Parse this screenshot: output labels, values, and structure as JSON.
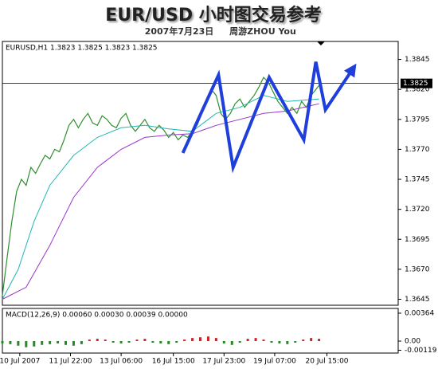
{
  "title": "EUR/USD 小时图交易参考",
  "subtitle": "2007年7月23日",
  "author": "周游ZHOU You",
  "chart_data": [
    {
      "type": "line",
      "header": "EURUSD,H1  1.3823 1.3825 1.3823 1.3825",
      "xlim": [
        0,
        250
      ],
      "xticks": [
        {
          "value": 11,
          "label": "10 Jul 2007"
        },
        {
          "value": 43,
          "label": "11 Jul 22:00"
        },
        {
          "value": 75,
          "label": "13 Jul 06:00"
        },
        {
          "value": 108,
          "label": "16 Jul 15:00"
        },
        {
          "value": 140,
          "label": "17 Jul 23:00"
        },
        {
          "value": 172,
          "label": "19 Jul 07:00"
        },
        {
          "value": 205,
          "label": "20 Jul 15:00"
        }
      ],
      "ylim": [
        1.364,
        1.386
      ],
      "yticks": [
        1.3645,
        {
          "value": 1.367,
          "label": "1.3670"
        },
        1.3695,
        {
          "value": 1.372,
          "label": "1.3720"
        },
        1.3745,
        {
          "value": 1.377,
          "label": "1.3770"
        },
        1.3795,
        {
          "value": 1.382,
          "label": "1.3820"
        },
        1.3845
      ],
      "current_price": 1.3825,
      "series": [
        {
          "color": "#2f8f2f",
          "x": [
            0,
            3,
            6,
            9,
            12,
            15,
            18,
            21,
            24,
            27,
            30,
            33,
            36,
            39,
            42,
            45,
            48,
            51,
            54,
            57,
            60,
            63,
            66,
            69,
            72,
            75,
            78,
            81,
            84,
            87,
            90,
            93,
            96,
            99,
            102,
            105,
            108,
            111,
            114,
            117,
            120,
            123,
            126,
            129,
            132,
            135,
            138,
            141,
            144,
            147,
            150,
            153,
            156,
            159,
            162,
            165,
            168,
            171,
            174,
            177,
            180,
            183,
            186,
            189,
            192,
            195,
            198,
            201
          ],
          "values": [
            1.3648,
            1.368,
            1.371,
            1.3735,
            1.3745,
            1.374,
            1.3755,
            1.375,
            1.3758,
            1.3765,
            1.3762,
            1.377,
            1.3768,
            1.3778,
            1.379,
            1.3795,
            1.3788,
            1.3795,
            1.38,
            1.3792,
            1.379,
            1.3798,
            1.3795,
            1.379,
            1.3788,
            1.3796,
            1.38,
            1.379,
            1.3785,
            1.379,
            1.3795,
            1.3788,
            1.3785,
            1.379,
            1.3786,
            1.378,
            1.3784,
            1.3778,
            1.3782,
            1.378,
            1.3785,
            1.379,
            1.38,
            1.3812,
            1.382,
            1.3815,
            1.38,
            1.3795,
            1.38,
            1.3808,
            1.3812,
            1.3805,
            1.381,
            1.3815,
            1.3822,
            1.383,
            1.3826,
            1.3818,
            1.381,
            1.3805,
            1.38,
            1.3805,
            1.38,
            1.381,
            1.3805,
            1.3815,
            1.382,
            1.3825
          ]
        },
        {
          "color": "#9a33cc",
          "x": [
            0,
            15,
            30,
            45,
            60,
            75,
            90,
            105,
            120,
            135,
            150,
            165,
            180,
            200
          ],
          "values": [
            1.3645,
            1.3655,
            1.369,
            1.373,
            1.3755,
            1.377,
            1.378,
            1.3782,
            1.3783,
            1.379,
            1.3795,
            1.38,
            1.3802,
            1.3808
          ]
        },
        {
          "color": "#22b8b0",
          "x": [
            0,
            10,
            20,
            30,
            45,
            60,
            75,
            90,
            105,
            120,
            135,
            150,
            165,
            180,
            200
          ],
          "values": [
            1.3645,
            1.367,
            1.371,
            1.374,
            1.3765,
            1.378,
            1.3788,
            1.379,
            1.3787,
            1.3785,
            1.38,
            1.3805,
            1.3815,
            1.381,
            1.3812
          ]
        }
      ],
      "annotation": {
        "color": "#1f3fdc",
        "x": [
          114,
          136.5,
          145.7,
          168.5,
          190.4,
          198,
          204,
          221.8
        ],
        "values": [
          1.3767,
          1.3832,
          1.3755,
          1.383,
          1.3778,
          1.3843,
          1.3803,
          1.3838
        ]
      }
    },
    {
      "type": "bar",
      "header": "MACD(12,26,9) 0.00060 0.00030 0.00039 0.00000",
      "xlim": [
        0,
        250
      ],
      "ylim": [
        -0.00156,
        0.00426
      ],
      "yticks": [
        0.00364,
        {
          "value": 0,
          "label": "0.00"
        },
        -0.00119
      ],
      "up_color": "#cc2222",
      "down_color": "#228b22",
      "x": [
        0,
        5,
        10,
        15,
        20,
        25,
        30,
        35,
        40,
        45,
        50,
        55,
        60,
        65,
        70,
        75,
        80,
        85,
        90,
        95,
        100,
        105,
        110,
        115,
        120,
        125,
        130,
        135,
        140,
        145,
        150,
        155,
        160,
        165,
        170,
        175,
        180,
        185,
        190,
        195,
        200
      ],
      "values": [
        -0.0003,
        -0.0004,
        -0.0006,
        -0.0008,
        -0.0007,
        -0.0005,
        -0.0004,
        -0.0003,
        -0.0005,
        -0.0006,
        -0.0004,
        0.0002,
        0.0003,
        0.0002,
        -0.0002,
        -0.0003,
        -0.0002,
        0.0002,
        0.0003,
        -0.0002,
        -0.0003,
        -0.0004,
        -0.0002,
        0.0002,
        0.0004,
        0.0005,
        0.0006,
        0.0004,
        -0.0003,
        -0.0005,
        -0.0002,
        0.0003,
        0.0004,
        0.0002,
        -0.0002,
        -0.0003,
        -0.0004,
        -0.0002,
        0.0002,
        0.0004,
        0.0003
      ]
    }
  ]
}
